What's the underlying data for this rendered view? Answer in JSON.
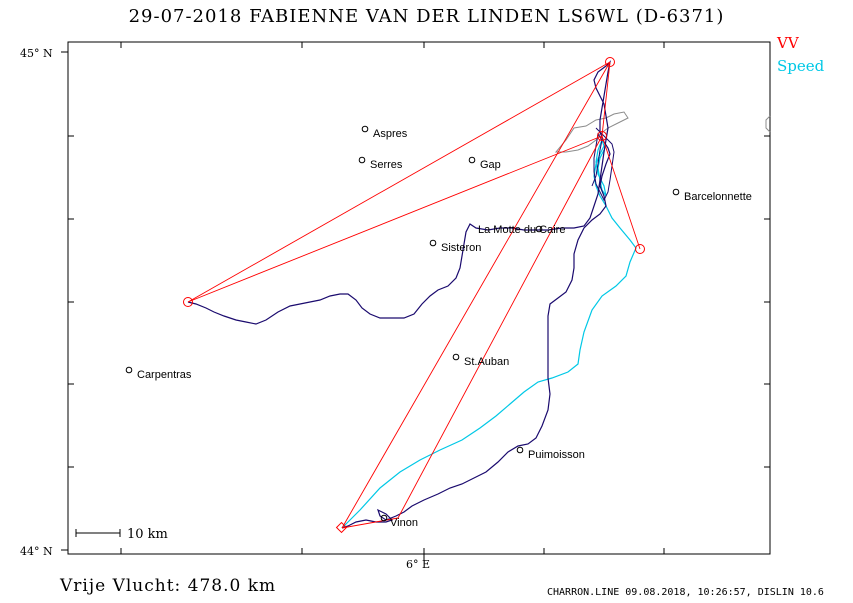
{
  "header": {
    "title": "29-07-2018   FABIENNE VAN DER LINDEN   LS6WL (D-6371)"
  },
  "legend": {
    "vv": "VV",
    "speed": "Speed",
    "vv_color": "#ff0000",
    "speed_color": "#00c8e6",
    "track_color": "#1a0a6e",
    "terrain_color": "#8c8c8c"
  },
  "axes": {
    "lat_top": "45° N",
    "lat_bottom": "44° N",
    "lon_label": "6° E"
  },
  "scale_bar": {
    "label": "10 km"
  },
  "places": [
    {
      "name": "Aspres"
    },
    {
      "name": "Serres"
    },
    {
      "name": "Gap"
    },
    {
      "name": "Barcelonnette"
    },
    {
      "name": "La Motte du Caire"
    },
    {
      "name": "Sisteron"
    },
    {
      "name": "Carpentras"
    },
    {
      "name": "St.Auban"
    },
    {
      "name": "Puimoisson"
    },
    {
      "name": "Vinon"
    }
  ],
  "footer": {
    "distance": "Vrije Vlucht:  478.0 km",
    "file_info": "CHARRON.LINE 09.08.2018, 10:26:57, DISLIN 10.6"
  }
}
